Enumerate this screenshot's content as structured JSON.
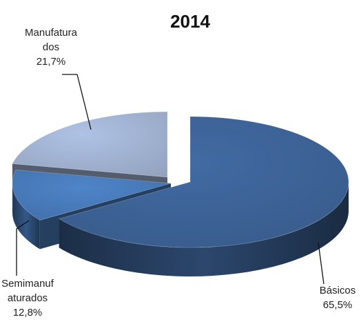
{
  "chart_data": {
    "type": "pie",
    "title": "2014",
    "style": "3d-exploded",
    "slices": [
      {
        "label": [
          "Básicos"
        ],
        "value": 65.5,
        "display": "65,5%",
        "color": "#3F669C"
      },
      {
        "label": [
          "Semimanuf",
          "aturados"
        ],
        "value": 12.8,
        "display": "12,8%",
        "color": "#4A7EBF"
      },
      {
        "label": [
          "Manufatura",
          "dos"
        ],
        "value": 21.7,
        "display": "21,7%",
        "color": "#A7B9D9"
      }
    ]
  }
}
